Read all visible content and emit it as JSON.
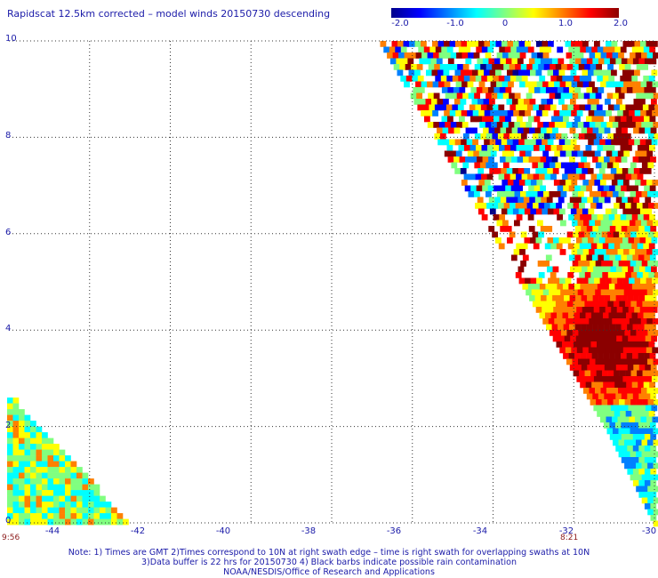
{
  "title": "Rapidscat 12.5km corrected – model winds 20150730 descending",
  "colorbar": {
    "tick_labels": [
      "-2.0",
      "-1.0",
      "0",
      "1.0",
      "2.0"
    ],
    "tick_values": [
      -2.0,
      -1.0,
      0.0,
      1.0,
      2.0
    ],
    "range": [
      -2.0,
      2.0
    ],
    "colors": [
      "#00008b",
      "#0000ff",
      "#0080ff",
      "#00ffff",
      "#80ff80",
      "#ffff00",
      "#ff8000",
      "#ff0000",
      "#8b0000"
    ]
  },
  "map": {
    "lon_range": [
      -46,
      -30
    ],
    "lat_range": [
      0,
      10
    ],
    "lat_labels": [
      "0",
      "2",
      "4",
      "6",
      "8",
      "10"
    ],
    "lon_labels": [
      "-44",
      "-42",
      "-40",
      "-38",
      "-36",
      "-34",
      "-32",
      "-30"
    ],
    "time_labels": [
      "9:56",
      "8:21"
    ],
    "grid": "dotted",
    "background": "#ffffff"
  },
  "note": {
    "line1": "Note: 1) Times are GMT 2)Times correspond to 10N at right swath edge – time is right swath for overlapping swaths at 10N",
    "line2": "3)Data buffer is 22 hrs for 20150730 4) Black barbs indicate possible rain contamination",
    "line3": "NOAA/NESDIS/Office of Research and Applications"
  }
}
